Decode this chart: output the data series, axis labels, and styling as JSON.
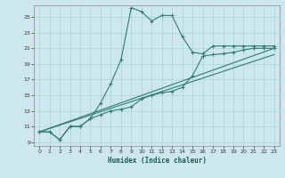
{
  "xlabel": "Humidex (Indice chaleur)",
  "bg_color": "#cce8ee",
  "line_color": "#2e7d6e",
  "grid_color": "#aad4cc",
  "xlim": [
    -0.5,
    23.5
  ],
  "ylim": [
    8.5,
    26.5
  ],
  "yticks": [
    9,
    11,
    13,
    15,
    17,
    19,
    21,
    23,
    25
  ],
  "xticks": [
    0,
    1,
    2,
    3,
    4,
    5,
    6,
    7,
    8,
    9,
    10,
    11,
    12,
    13,
    14,
    15,
    16,
    17,
    18,
    19,
    20,
    21,
    22,
    23
  ],
  "line1_x": [
    0,
    1,
    2,
    3,
    4,
    5,
    6,
    7,
    8,
    9,
    10,
    11,
    12,
    13,
    14,
    15,
    16,
    17,
    18,
    19,
    20,
    21,
    22,
    23
  ],
  "line1_y": [
    10.3,
    10.3,
    9.3,
    11.0,
    11.0,
    12.0,
    14.0,
    16.5,
    19.5,
    26.2,
    25.7,
    24.5,
    25.2,
    25.2,
    22.5,
    20.5,
    20.3,
    21.3,
    21.3,
    21.3,
    21.3,
    21.3,
    21.3,
    21.3
  ],
  "line2_x": [
    0,
    1,
    2,
    3,
    4,
    5,
    6,
    7,
    8,
    9,
    10,
    11,
    12,
    13,
    14,
    15,
    16,
    17,
    18,
    19,
    20,
    21,
    22,
    23
  ],
  "line2_y": [
    10.3,
    10.3,
    9.3,
    11.0,
    11.0,
    12.0,
    12.5,
    13.0,
    13.2,
    13.5,
    14.5,
    15.0,
    15.3,
    15.5,
    16.0,
    17.5,
    20.0,
    20.2,
    20.3,
    20.5,
    20.8,
    21.0,
    21.0,
    21.0
  ],
  "line3_x": [
    0,
    23
  ],
  "line3_y": [
    10.3,
    21.0
  ],
  "line4_x": [
    0,
    23
  ],
  "line4_y": [
    10.3,
    20.2
  ]
}
